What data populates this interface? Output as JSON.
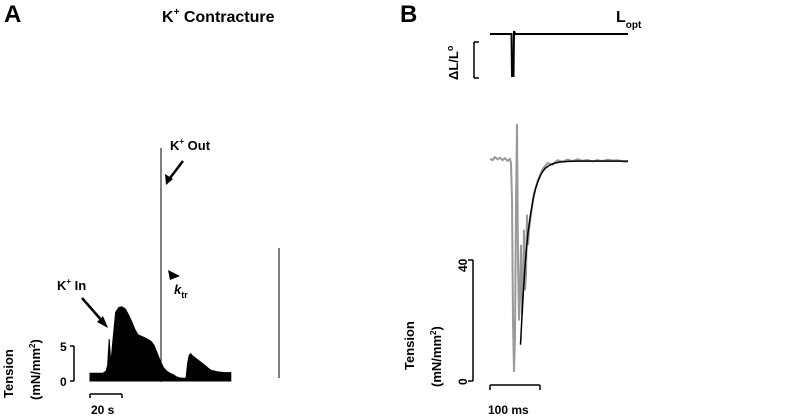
{
  "panels": {
    "a": {
      "letter": "A",
      "title_main": "K",
      "title_sup": "+",
      "title_rest": " Contracture"
    },
    "b": {
      "letter": "B",
      "top_label_main": "L",
      "top_label_sub": "opt"
    }
  },
  "chart_data": [
    {
      "type": "line",
      "panel": "A",
      "title": "K+ Contracture",
      "annotations": {
        "k_in": {
          "main": "K",
          "sup": "+",
          "rest": " In"
        },
        "k_out": {
          "main": "K",
          "sup": "+",
          "rest": " Out"
        },
        "ktr": {
          "main": "k",
          "sub": "tr"
        }
      },
      "ylabel": {
        "line1": "Tension",
        "line2_pre": "(mN/mm",
        "line2_sup": "2",
        "line2_post": ")"
      },
      "scale_bar_y": {
        "value_label": "5",
        "zero_label": "0"
      },
      "scale_bar_x": {
        "label": "20 s"
      },
      "x_unit": "s",
      "y_unit": "mN/mm2",
      "series": [
        {
          "values": [
            [
              0,
              1.1
            ],
            [
              8,
              1.1
            ],
            [
              10,
              1.4
            ],
            [
              11,
              2.2
            ],
            [
              12,
              6
            ],
            [
              13,
              2.5
            ],
            [
              14,
              5
            ],
            [
              16,
              9.8
            ],
            [
              18,
              10.5
            ],
            [
              20,
              10.6
            ],
            [
              22,
              10.3
            ],
            [
              24,
              9.5
            ],
            [
              26,
              8.5
            ],
            [
              28,
              7.4
            ],
            [
              30,
              6.6
            ],
            [
              34,
              6.2
            ],
            [
              38,
              5.7
            ],
            [
              40,
              5.1
            ],
            [
              42,
              4.0
            ],
            [
              44,
              2.8
            ],
            [
              46,
              1.9
            ],
            [
              48,
              1.4
            ],
            [
              50,
              1.1
            ],
            [
              52,
              0.9
            ],
            [
              54,
              0.6
            ],
            [
              56,
              0.45
            ],
            [
              58,
              0.4
            ],
            [
              60,
              0.4
            ],
            [
              61,
              2.5
            ],
            [
              62,
              3.7
            ],
            [
              63,
              3.9
            ],
            [
              64,
              3.6
            ],
            [
              68,
              2.9
            ],
            [
              72,
              2.2
            ],
            [
              74,
              1.8
            ],
            [
              76,
              1.5
            ],
            [
              80,
              1.3
            ],
            [
              84,
              1.2
            ],
            [
              88,
              1.2
            ]
          ]
        }
      ]
    },
    {
      "type": "line",
      "panel": "B",
      "top_trace_label": "L_opt",
      "top_ylabel": {
        "main": "ΔL/L",
        "sub": "o"
      },
      "ylabel": {
        "line1": "Tension",
        "line2_pre": "(mN/mm",
        "line2_sup": "2",
        "line2_post": ")"
      },
      "y_ticks": [
        0,
        40
      ],
      "scale_bar_x": {
        "label": "100 ms"
      },
      "x_unit": "ms",
      "y_unit": "mN/mm2",
      "series": [
        {
          "name": "data",
          "color": "#999999",
          "values": [
            [
              0,
              73.5
            ],
            [
              5,
              73
            ],
            [
              10,
              74
            ],
            [
              15,
              73.3
            ],
            [
              20,
              73.8
            ],
            [
              25,
              73
            ],
            [
              30,
              73.7
            ],
            [
              35,
              72.8
            ],
            [
              40,
              73.4
            ],
            [
              42,
              72
            ],
            [
              44,
              60
            ],
            [
              46,
              20
            ],
            [
              48,
              3
            ],
            [
              50,
              15
            ],
            [
              52,
              58
            ],
            [
              54,
              85
            ],
            [
              56,
              40
            ],
            [
              58,
              20
            ],
            [
              60,
              30
            ],
            [
              62,
              45
            ],
            [
              64,
              22
            ],
            [
              66,
              28
            ],
            [
              68,
              50
            ],
            [
              70,
              30
            ],
            [
              72,
              35
            ],
            [
              74,
              55
            ],
            [
              76,
              45
            ],
            [
              78,
              50
            ],
            [
              82,
              55
            ],
            [
              88,
              62
            ],
            [
              95,
              66
            ],
            [
              105,
              70
            ],
            [
              115,
              72
            ],
            [
              125,
              71.5
            ],
            [
              135,
              73
            ],
            [
              145,
              72.5
            ],
            [
              155,
              73.2
            ],
            [
              165,
              72.7
            ],
            [
              175,
              73.3
            ],
            [
              185,
              72.8
            ],
            [
              195,
              73.1
            ],
            [
              205,
              72.6
            ],
            [
              215,
              73
            ],
            [
              225,
              72.7
            ],
            [
              235,
              73.2
            ],
            [
              245,
              72.9
            ],
            [
              255,
              73
            ],
            [
              265,
              72.6
            ],
            [
              275,
              72.4
            ]
          ]
        },
        {
          "name": "fit",
          "color": "#000000",
          "values": [
            [
              61,
              12
            ],
            [
              66,
              28
            ],
            [
              71,
              40
            ],
            [
              76,
              49
            ],
            [
              81,
              55
            ],
            [
              86,
              60
            ],
            [
              91,
              63.5
            ],
            [
              96,
              66
            ],
            [
              101,
              68
            ],
            [
              106,
              69.4
            ],
            [
              111,
              70.4
            ],
            [
              121,
              71.5
            ],
            [
              131,
              72.1
            ],
            [
              141,
              72.4
            ],
            [
              156,
              72.6
            ],
            [
              176,
              72.7
            ],
            [
              206,
              72.7
            ],
            [
              276,
              72.7
            ]
          ]
        }
      ],
      "length_trace": [
        [
          0,
          0
        ],
        [
          43,
          0
        ],
        [
          44,
          -1
        ],
        [
          47,
          -1
        ],
        [
          48,
          0.05
        ],
        [
          49,
          0.05
        ],
        [
          50,
          0
        ],
        [
          276,
          0
        ]
      ]
    }
  ]
}
